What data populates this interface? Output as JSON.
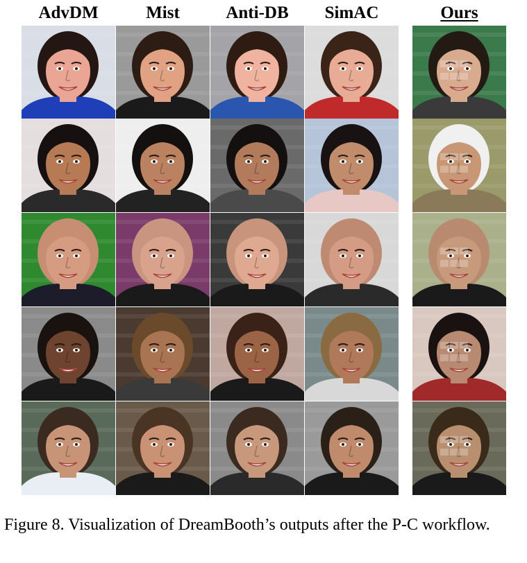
{
  "figure": {
    "columns": [
      "AdvDM",
      "Mist",
      "Anti-DB",
      "SimAC",
      "Ours"
    ],
    "rows": [
      {
        "subject": "young woman with dark hair pulled back, smiling, blue top",
        "cells": [
          {
            "bg": "#d9dde6",
            "skin": "#eaa595",
            "hair": "#241612",
            "cloth": "#1f3fb8"
          },
          {
            "bg": "#9a9a9a",
            "skin": "#e1a284",
            "hair": "#2d1c14",
            "cloth": "#1a1a1a"
          },
          {
            "bg": "#a3a3a8",
            "skin": "#efb3a0",
            "hair": "#2e1b12",
            "cloth": "#2a56b0"
          },
          {
            "bg": "#dcdcdc",
            "skin": "#e8ab95",
            "hair": "#3a2418",
            "cloth": "#c02a2a"
          },
          {
            "bg": "#3b7a4a",
            "skin": "#d8aa8e",
            "hair": "#241a14",
            "cloth": "#3a3a3a"
          }
        ]
      },
      {
        "subject": "man with dark curly hair, smiling, event backdrop",
        "cells": [
          {
            "bg": "#e4dede",
            "skin": "#b67a55",
            "hair": "#161010",
            "cloth": "#2a2a2a"
          },
          {
            "bg": "#eeeeee",
            "skin": "#ba8260",
            "hair": "#141010",
            "cloth": "#222222"
          },
          {
            "bg": "#6a6a6a",
            "skin": "#b27b5c",
            "hair": "#151010",
            "cloth": "#4a4a4a"
          },
          {
            "bg": "#b5c4d8",
            "skin": "#c08c6c",
            "hair": "#181212",
            "cloth": "#e8c8c4"
          },
          {
            "bg": "#9a9a6a",
            "skin": "#c89876",
            "hair": "#f0f0f0",
            "cloth": "#8a7a5a"
          }
        ]
      },
      {
        "subject": "bald heavy-set man in suit and tie",
        "cells": [
          {
            "bg": "#2f8a2f",
            "skin": "#d69c82",
            "hair": "#c88e74",
            "cloth": "#1c1c2a"
          },
          {
            "bg": "#7a3a6a",
            "skin": "#d8a28c",
            "hair": "#c99480",
            "cloth": "#1a1a1a"
          },
          {
            "bg": "#3a3a3a",
            "skin": "#dfa890",
            "hair": "#c8957c",
            "cloth": "#1a1a1a"
          },
          {
            "bg": "#d8d8d8",
            "skin": "#d49c84",
            "hair": "#bf8a72",
            "cloth": "#2a2a2a"
          },
          {
            "bg": "#aab08a",
            "skin": "#c89a7c",
            "hair": "#b88a70",
            "cloth": "#1a1a1a"
          }
        ]
      },
      {
        "subject": "woman with dark skin, wavy hair, necklace",
        "cells": [
          {
            "bg": "#8a8a8a",
            "skin": "#6e4430",
            "hair": "#1a120e",
            "cloth": "#1a1a1a"
          },
          {
            "bg": "#4a3a30",
            "skin": "#a87452",
            "hair": "#6a4a2a",
            "cloth": "#3a3a3a"
          },
          {
            "bg": "#c0a8a0",
            "skin": "#9c6446",
            "hair": "#3a2218",
            "cloth": "#1a1a1a"
          },
          {
            "bg": "#7a8a8a",
            "skin": "#b07a5a",
            "hair": "#8a6a40",
            "cloth": "#d8d8d8"
          },
          {
            "bg": "#d8c8c0",
            "skin": "#b88a72",
            "hair": "#1a1210",
            "cloth": "#a02a2a"
          }
        ]
      },
      {
        "subject": "man with short brown hair, white shirt",
        "cells": [
          {
            "bg": "#5a6a5a",
            "skin": "#c89478",
            "hair": "#3a2a20",
            "cloth": "#e8eef4"
          },
          {
            "bg": "#6a5a4a",
            "skin": "#c99274",
            "hair": "#4a3424",
            "cloth": "#1a1a1a"
          },
          {
            "bg": "#8a8a8a",
            "skin": "#c8987c",
            "hair": "#3a2a20",
            "cloth": "#2a2a2a"
          },
          {
            "bg": "#9a9a9a",
            "skin": "#c08a6c",
            "hair": "#2a2018",
            "cloth": "#1a1a1a"
          },
          {
            "bg": "#6a6a5a",
            "skin": "#b89070",
            "hair": "#3a2a1a",
            "cloth": "#1a1a1a"
          }
        ]
      }
    ]
  },
  "caption": "Figure 8.  Visualization of DreamBooth’s outputs after the P-C workflow."
}
